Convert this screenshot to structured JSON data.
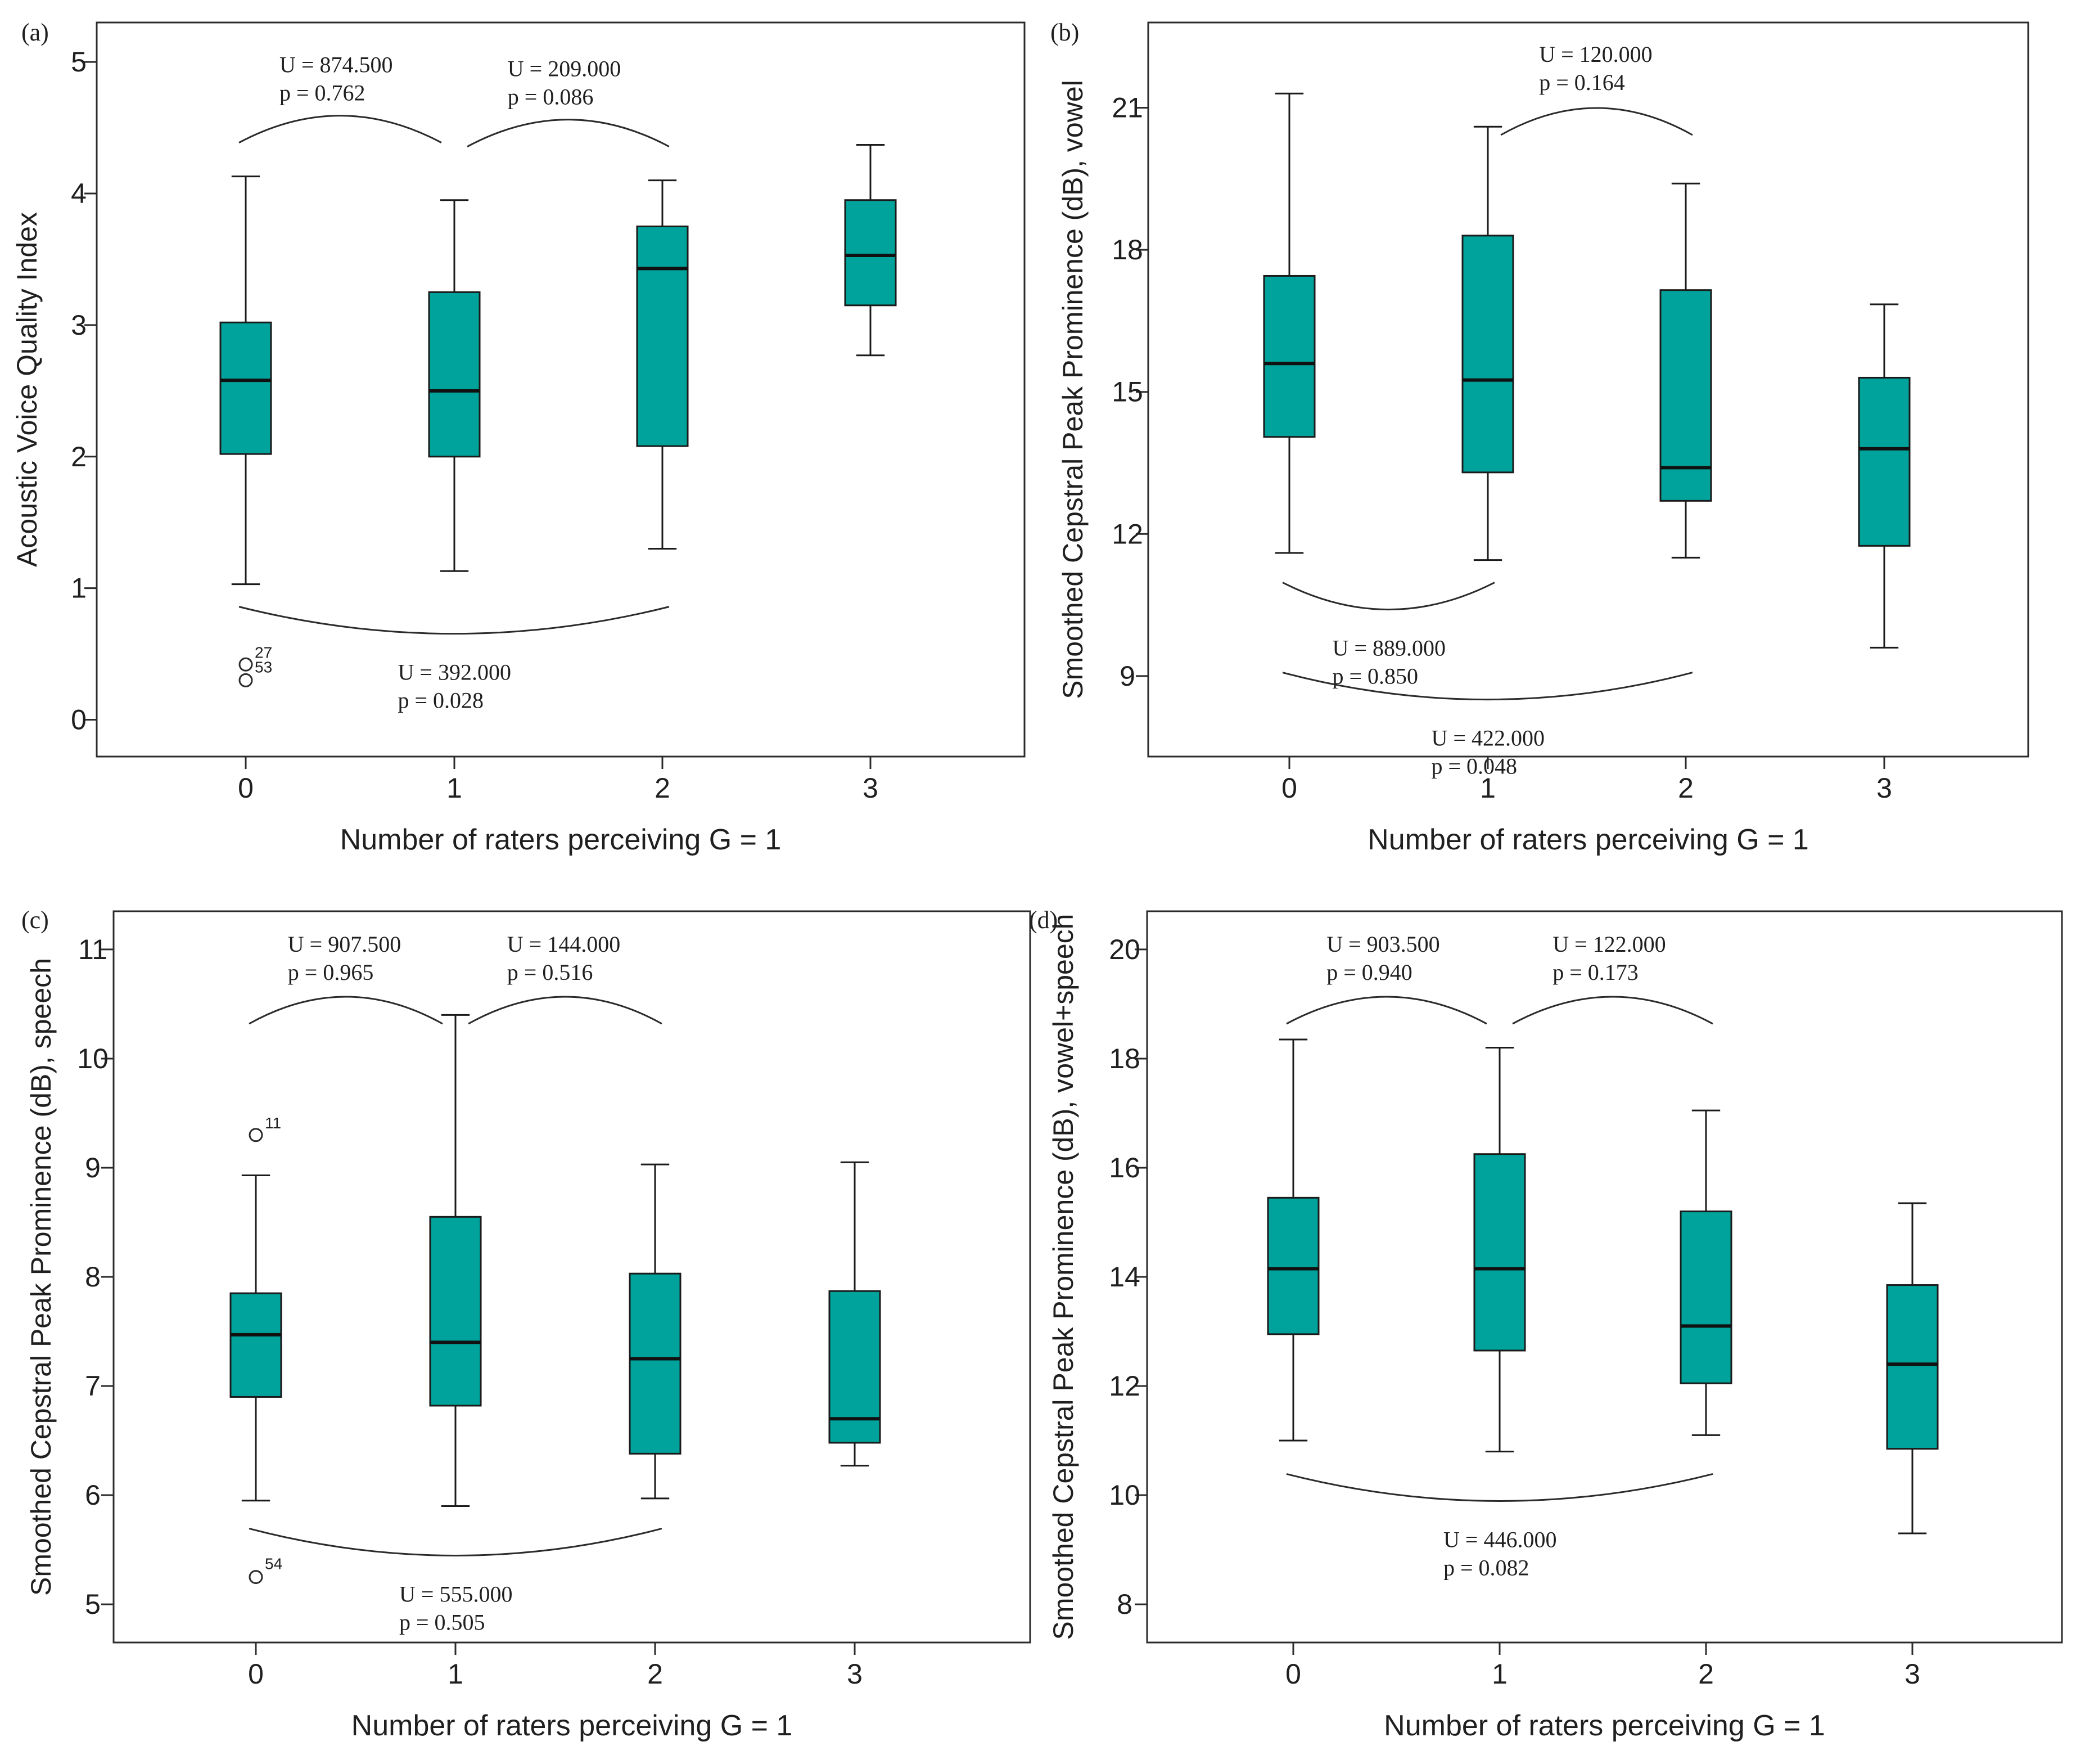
{
  "figure": {
    "box_fill": "#00a39b",
    "box_stroke": "#1a1a1a",
    "line_color": "#2b2b2b"
  },
  "chart_data": [
    {
      "type": "boxplot",
      "panel": "(a)",
      "title": "",
      "xlabel": "Number of raters perceiving G = 1",
      "ylabel": "Acoustic Voice Quality Index",
      "categories": [
        "0",
        "1",
        "2",
        "3"
      ],
      "ylim": [
        -0.28,
        5.3
      ],
      "yticks": [
        0,
        1,
        2,
        3,
        4,
        5
      ],
      "boxes": [
        {
          "category": "0",
          "whisker_low": 1.03,
          "q1": 2.02,
          "median": 2.58,
          "q3": 3.02,
          "whisker_high": 4.13
        },
        {
          "category": "1",
          "whisker_low": 1.13,
          "q1": 2.0,
          "median": 2.5,
          "q3": 3.25,
          "whisker_high": 3.95
        },
        {
          "category": "2",
          "whisker_low": 1.3,
          "q1": 2.08,
          "median": 3.43,
          "q3": 3.75,
          "whisker_high": 4.1
        },
        {
          "category": "3",
          "whisker_low": 2.77,
          "q1": 3.15,
          "median": 3.53,
          "q3": 3.95,
          "whisker_high": 4.37
        }
      ],
      "outliers": [
        {
          "category": "0",
          "value": 0.42,
          "label": "27"
        },
        {
          "category": "0",
          "value": 0.3,
          "label": "53"
        }
      ],
      "comparisons": [
        {
          "from": "0",
          "to": "1",
          "position": "above",
          "u": "U = 874.500",
          "p": "p = 0.762"
        },
        {
          "from": "1",
          "to": "2",
          "position": "above",
          "u": "U = 209.000",
          "p": "p = 0.086"
        },
        {
          "from": "0",
          "to": "2",
          "position": "below",
          "u": "U = 392.000",
          "p": "p = 0.028"
        }
      ]
    },
    {
      "type": "boxplot",
      "panel": "(b)",
      "title": "",
      "xlabel": "Number of raters perceiving G = 1",
      "ylabel": "Smoothed Cepstral Peak Prominence (dB), vowel",
      "categories": [
        "0",
        "1",
        "2",
        "3"
      ],
      "ylim": [
        7.3,
        22.8
      ],
      "yticks": [
        9,
        12,
        15,
        18,
        21
      ],
      "boxes": [
        {
          "category": "0",
          "whisker_low": 11.6,
          "q1": 14.05,
          "median": 15.6,
          "q3": 17.45,
          "whisker_high": 21.3
        },
        {
          "category": "1",
          "whisker_low": 11.45,
          "q1": 13.3,
          "median": 15.25,
          "q3": 18.3,
          "whisker_high": 20.6
        },
        {
          "category": "2",
          "whisker_low": 11.5,
          "q1": 12.7,
          "median": 13.4,
          "q3": 17.15,
          "whisker_high": 19.4
        },
        {
          "category": "3",
          "whisker_low": 9.6,
          "q1": 11.75,
          "median": 13.8,
          "q3": 15.3,
          "whisker_high": 16.85
        }
      ],
      "outliers": [],
      "comparisons": [
        {
          "from": "1",
          "to": "2",
          "position": "above",
          "u": "U = 120.000",
          "p": "p = 0.164"
        },
        {
          "from": "0",
          "to": "1",
          "position": "below",
          "u": "U = 889.000",
          "p": "p = 0.850"
        },
        {
          "from": "0",
          "to": "2",
          "position": "below",
          "u": "U = 422.000",
          "p": "p = 0.048"
        }
      ]
    },
    {
      "type": "boxplot",
      "panel": "(c)",
      "title": "",
      "xlabel": "Number of raters perceiving G = 1",
      "ylabel": "Smoothed Cepstral Peak Prominence (dB), speech",
      "categories": [
        "0",
        "1",
        "2",
        "3"
      ],
      "ylim": [
        4.65,
        11.35
      ],
      "yticks": [
        5,
        6,
        7,
        8,
        9,
        10,
        11
      ],
      "boxes": [
        {
          "category": "0",
          "whisker_low": 5.95,
          "q1": 6.9,
          "median": 7.47,
          "q3": 7.85,
          "whisker_high": 8.93
        },
        {
          "category": "1",
          "whisker_low": 5.9,
          "q1": 6.82,
          "median": 7.4,
          "q3": 8.55,
          "whisker_high": 10.4
        },
        {
          "category": "2",
          "whisker_low": 5.97,
          "q1": 6.38,
          "median": 7.25,
          "q3": 8.03,
          "whisker_high": 9.03
        },
        {
          "category": "3",
          "whisker_low": 6.27,
          "q1": 6.48,
          "median": 6.7,
          "q3": 7.87,
          "whisker_high": 9.05
        }
      ],
      "outliers": [
        {
          "category": "0",
          "value": 9.3,
          "label": "11"
        },
        {
          "category": "0",
          "value": 5.25,
          "label": "54"
        }
      ],
      "comparisons": [
        {
          "from": "0",
          "to": "1",
          "position": "above",
          "u": "U = 907.500",
          "p": "p = 0.965"
        },
        {
          "from": "1",
          "to": "2",
          "position": "above",
          "u": "U = 144.000",
          "p": "p = 0.516"
        },
        {
          "from": "0",
          "to": "2",
          "position": "below",
          "u": "U = 555.000",
          "p": "p = 0.505"
        }
      ]
    },
    {
      "type": "boxplot",
      "panel": "(d)",
      "title": "",
      "xlabel": "Number of raters perceiving G = 1",
      "ylabel": "Smoothed Cepstral Peak Prominence (dB), vowel+speech",
      "categories": [
        "0",
        "1",
        "2",
        "3"
      ],
      "ylim": [
        7.3,
        20.7
      ],
      "yticks": [
        8,
        10,
        12,
        14,
        16,
        18,
        20
      ],
      "boxes": [
        {
          "category": "0",
          "whisker_low": 11.0,
          "q1": 12.95,
          "median": 14.15,
          "q3": 15.45,
          "whisker_high": 18.35
        },
        {
          "category": "1",
          "whisker_low": 10.8,
          "q1": 12.65,
          "median": 14.15,
          "q3": 16.25,
          "whisker_high": 18.2
        },
        {
          "category": "2",
          "whisker_low": 11.1,
          "q1": 12.05,
          "median": 13.1,
          "q3": 15.2,
          "whisker_high": 17.05
        },
        {
          "category": "3",
          "whisker_low": 9.3,
          "q1": 10.85,
          "median": 12.4,
          "q3": 13.85,
          "whisker_high": 15.35
        }
      ],
      "outliers": [],
      "comparisons": [
        {
          "from": "0",
          "to": "1",
          "position": "above",
          "u": "U = 903.500",
          "p": "p = 0.940"
        },
        {
          "from": "1",
          "to": "2",
          "position": "above",
          "u": "U = 122.000",
          "p": "p = 0.173"
        },
        {
          "from": "0",
          "to": "2",
          "position": "below",
          "u": "U = 446.000",
          "p": "p = 0.082"
        }
      ]
    }
  ]
}
